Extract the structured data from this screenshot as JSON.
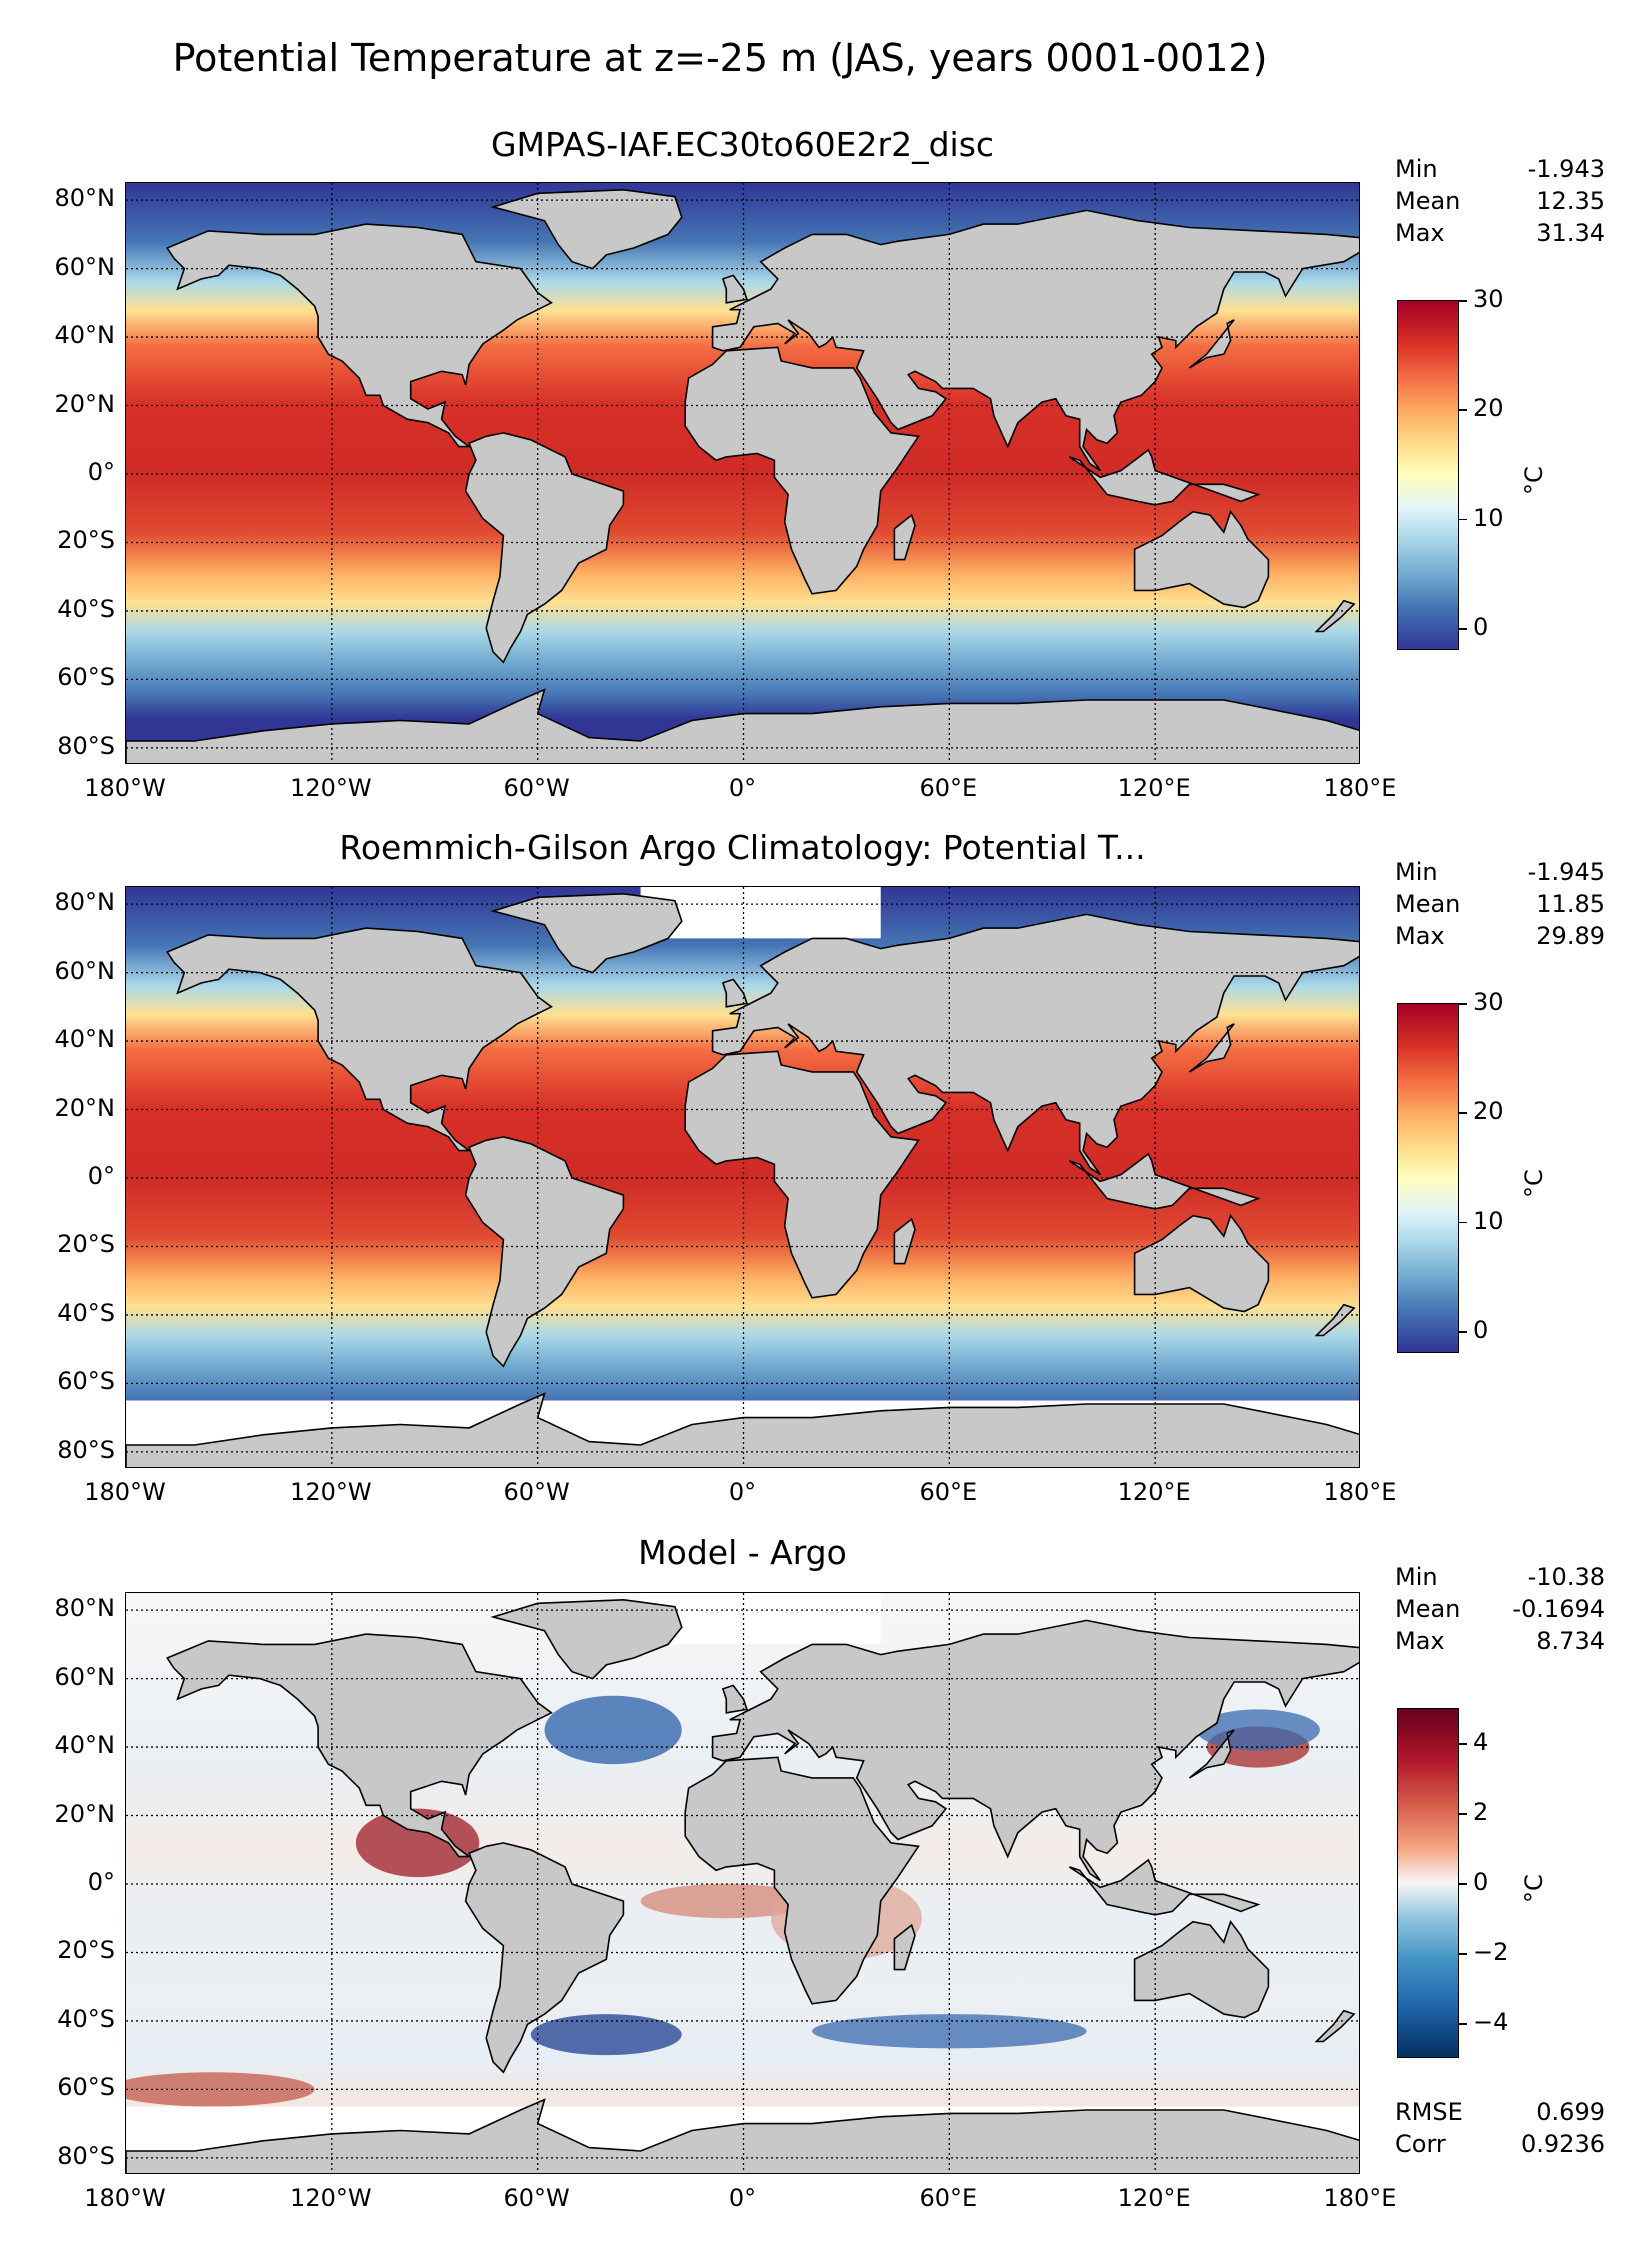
{
  "title": "Potential Temperature at z=-25 m (JAS, years 0001-0012)",
  "panels": [
    {
      "title": "GMPAS-IAF.EC30to60E2r2_disc",
      "stats": [
        {
          "label": "Min",
          "value": "-1.943"
        },
        {
          "label": "Mean",
          "value": "12.35"
        },
        {
          "label": "Max",
          "value": "31.34"
        }
      ],
      "colorbar": {
        "ticks": [
          "0",
          "10",
          "20",
          "30"
        ],
        "unit": "°C",
        "range": [
          -2,
          30
        ],
        "colormap": "RdYlBu_r"
      }
    },
    {
      "title": "Roemmich-Gilson Argo Climatology: Potential T...",
      "stats": [
        {
          "label": "Min",
          "value": "-1.945"
        },
        {
          "label": "Mean",
          "value": "11.85"
        },
        {
          "label": "Max",
          "value": "29.89"
        }
      ],
      "colorbar": {
        "ticks": [
          "0",
          "10",
          "20",
          "30"
        ],
        "unit": "°C",
        "range": [
          -2,
          30
        ],
        "colormap": "RdYlBu_r"
      }
    },
    {
      "title": "Model - Argo",
      "stats": [
        {
          "label": "Min",
          "value": "-10.38"
        },
        {
          "label": "Mean",
          "value": "-0.1694"
        },
        {
          "label": "Max",
          "value": "8.734"
        }
      ],
      "colorbar": {
        "ticks": [
          "4",
          "2",
          "0",
          "−2",
          "−4"
        ],
        "unit": "°C",
        "range": [
          -5,
          5
        ],
        "colormap": "RdBu_r"
      },
      "extra_stats": [
        {
          "label": "RMSE",
          "value": "0.699"
        },
        {
          "label": "Corr",
          "value": "0.9236"
        }
      ]
    }
  ],
  "lat_labels": [
    "80°N",
    "60°N",
    "40°N",
    "20°N",
    "0°",
    "20°S",
    "40°S",
    "60°S",
    "80°S"
  ],
  "lon_labels": [
    "180°W",
    "120°W",
    "60°W",
    "0°",
    "60°E",
    "120°E",
    "180°E"
  ],
  "colors": {
    "land": "#c8c8c8",
    "missing": "#ffffff"
  }
}
